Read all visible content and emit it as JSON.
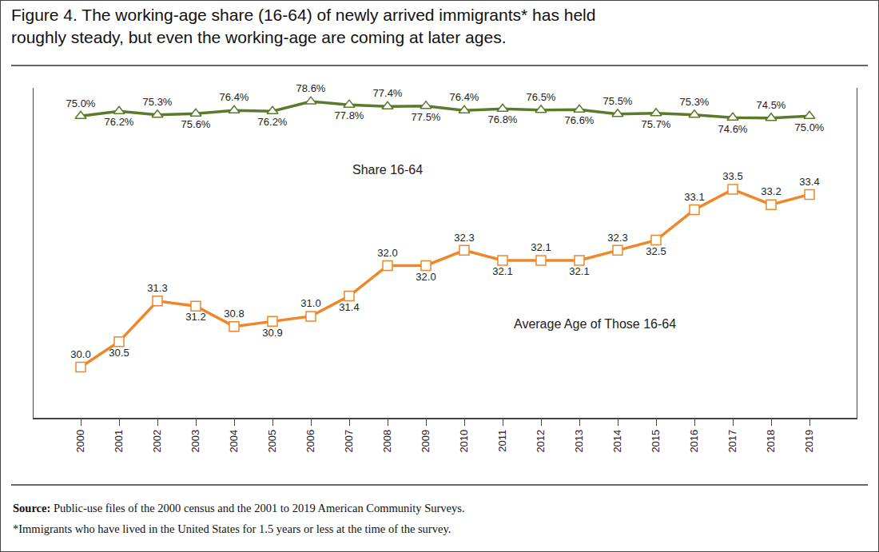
{
  "chart_data": {
    "type": "line",
    "title": "Figure 4. The working-age share (16-64) of newly arrived immigrants* has held\nroughly steady, but even the working-age are coming at later ages.",
    "categories": [
      "2000",
      "2001",
      "2002",
      "2003",
      "2004",
      "2005",
      "2006",
      "2007",
      "2008",
      "2009",
      "2010",
      "2011",
      "2012",
      "2013",
      "2014",
      "2015",
      "2016",
      "2017",
      "2018",
      "2019"
    ],
    "series": [
      {
        "name": "Share 16-64",
        "color": "#5b7a2b",
        "marker": "triangle",
        "values": [
          75.0,
          76.2,
          75.3,
          75.6,
          76.4,
          76.2,
          78.6,
          77.8,
          77.4,
          77.5,
          76.4,
          76.8,
          76.5,
          76.6,
          75.5,
          75.7,
          75.3,
          74.6,
          74.5,
          75.0
        ],
        "value_labels": [
          "75.0%",
          "76.2%",
          "75.3%",
          "75.6%",
          "76.4%",
          "76.2%",
          "78.6%",
          "77.8%",
          "77.4%",
          "77.5%",
          "76.4%",
          "76.8%",
          "76.5%",
          "76.6%",
          "75.5%",
          "75.7%",
          "75.3%",
          "74.6%",
          "74.5%",
          "75.0%"
        ]
      },
      {
        "name": "Average Age of Those 16-64",
        "color": "#f0862a",
        "marker": "square",
        "axis": "y2",
        "values": [
          30.0,
          30.5,
          31.3,
          31.2,
          30.8,
          30.9,
          31.0,
          31.4,
          32.0,
          32.0,
          32.3,
          32.1,
          32.1,
          32.1,
          32.3,
          32.5,
          33.1,
          33.5,
          33.2,
          33.4
        ],
        "value_labels": [
          "30.0",
          "30.5",
          "31.3",
          "31.2",
          "30.8",
          "30.9",
          "31.0",
          "31.4",
          "32.0",
          "32.0",
          "32.3",
          "32.1",
          "32.1",
          "32.1",
          "32.3",
          "32.5",
          "33.1",
          "33.5",
          "33.2",
          "33.4"
        ]
      }
    ],
    "ylim": [
      0,
      82
    ],
    "y2lim": [
      29,
      35.5
    ],
    "data_labels": true,
    "grid": false,
    "tick_labels": "x",
    "source": "Source: Public-use files of the 2000 census and the 2001 to 2019 American Community Surveys.",
    "note": "*Immigrants who have lived in the United States for 1.5 years or less at the time of the survey."
  }
}
